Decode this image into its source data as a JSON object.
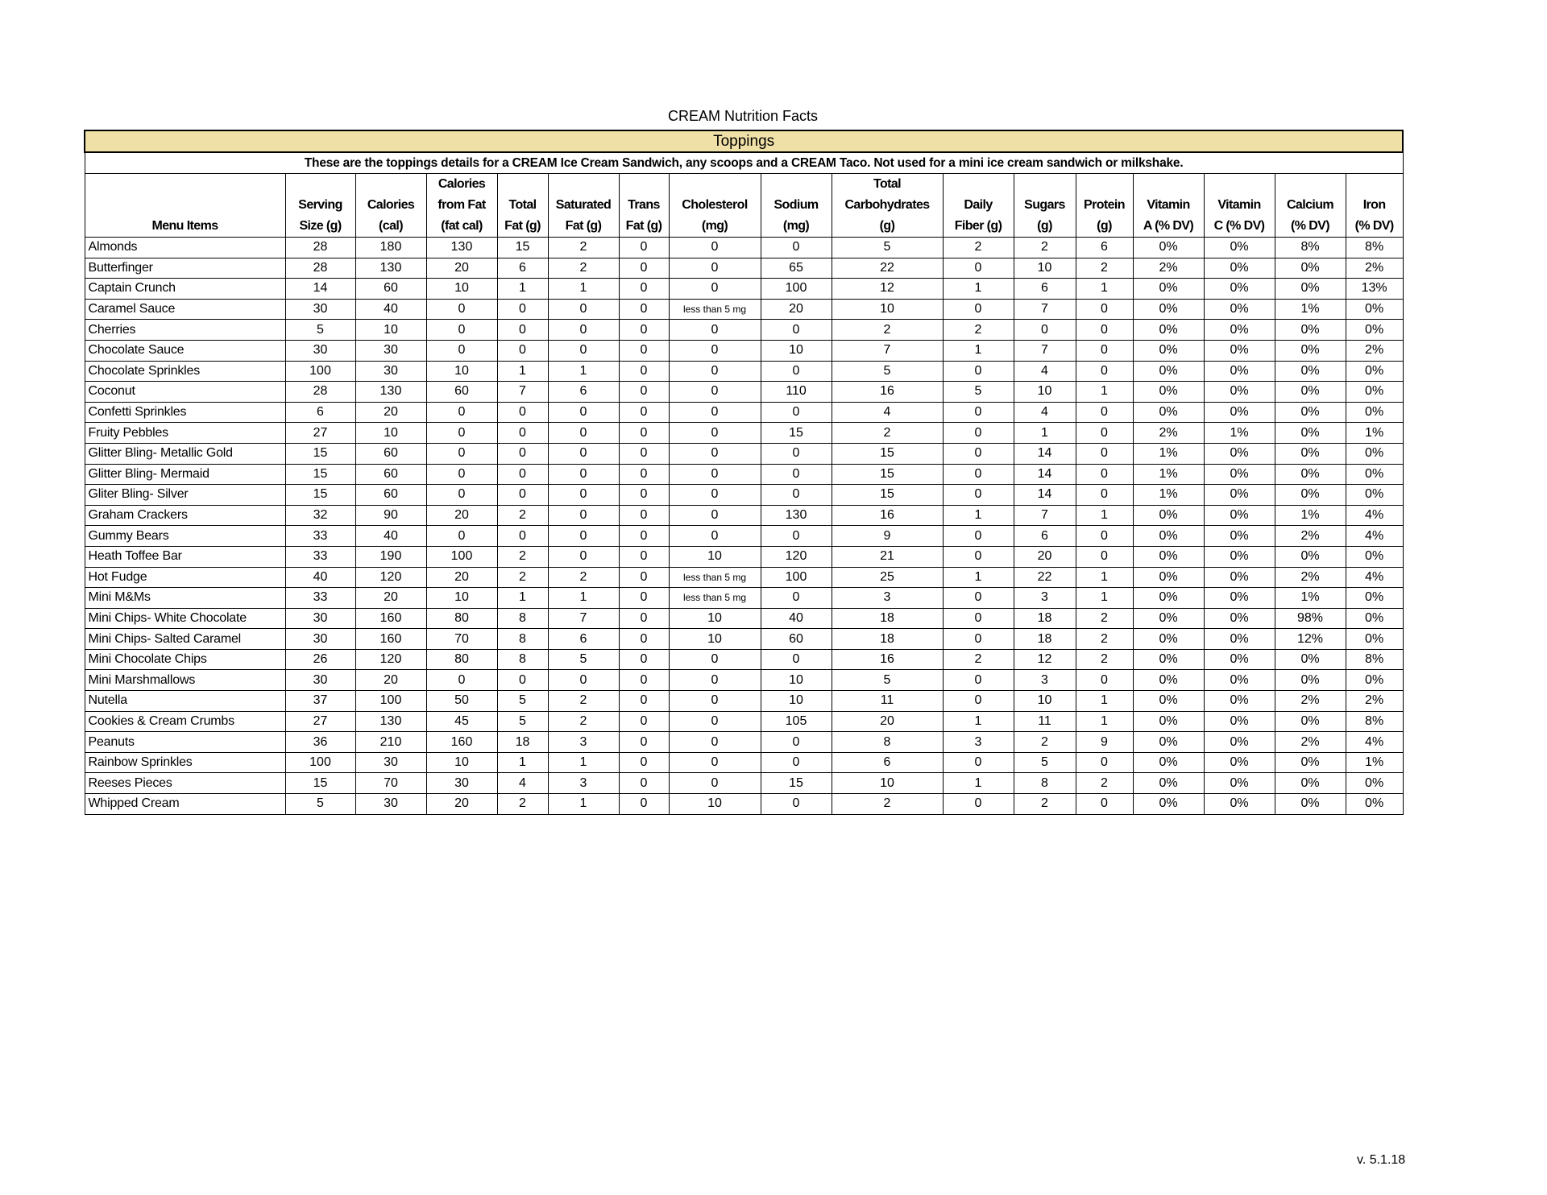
{
  "title": "CREAM Nutrition Facts",
  "section": "Toppings",
  "description": "These are the toppings details for a CREAM Ice Cream Sandwich, any scoops and a CREAM Taco. Not used for a mini ice cream sandwich or milkshake.",
  "accent_color": "#efe0a8",
  "columns": [
    [
      "Menu Items"
    ],
    [
      "Serving",
      "Size (g)"
    ],
    [
      "Calories",
      "(cal)"
    ],
    [
      "Calories",
      "from Fat",
      "(fat cal)"
    ],
    [
      "Total",
      "Fat (g)"
    ],
    [
      "Saturated",
      "Fat (g)"
    ],
    [
      "Trans",
      "Fat (g)"
    ],
    [
      "Cholesterol",
      "(mg)"
    ],
    [
      "Sodium",
      "(mg)"
    ],
    [
      "Total",
      "Carbohydrates",
      "(g)"
    ],
    [
      "Daily",
      "Fiber (g)"
    ],
    [
      "Sugars",
      "(g)"
    ],
    [
      "Protein",
      "(g)"
    ],
    [
      "Vitamin",
      "A (% DV)"
    ],
    [
      "Vitamin",
      "C (% DV)"
    ],
    [
      "Calcium",
      "(% DV)"
    ],
    [
      "Iron",
      "(% DV)"
    ]
  ],
  "rows": [
    [
      "Almonds",
      "28",
      "180",
      "130",
      "15",
      "2",
      "0",
      "0",
      "0",
      "5",
      "2",
      "2",
      "6",
      "0%",
      "0%",
      "8%",
      "8%"
    ],
    [
      "Butterfinger",
      "28",
      "130",
      "20",
      "6",
      "2",
      "0",
      "0",
      "65",
      "22",
      "0",
      "10",
      "2",
      "2%",
      "0%",
      "0%",
      "2%"
    ],
    [
      "Captain Crunch",
      "14",
      "60",
      "10",
      "1",
      "1",
      "0",
      "0",
      "100",
      "12",
      "1",
      "6",
      "1",
      "0%",
      "0%",
      "0%",
      "13%"
    ],
    [
      "Caramel Sauce",
      "30",
      "40",
      "0",
      "0",
      "0",
      "0",
      "less than 5 mg",
      "20",
      "10",
      "0",
      "7",
      "0",
      "0%",
      "0%",
      "1%",
      "0%"
    ],
    [
      "Cherries",
      "5",
      "10",
      "0",
      "0",
      "0",
      "0",
      "0",
      "0",
      "2",
      "2",
      "0",
      "0",
      "0%",
      "0%",
      "0%",
      "0%"
    ],
    [
      "Chocolate Sauce",
      "30",
      "30",
      "0",
      "0",
      "0",
      "0",
      "0",
      "10",
      "7",
      "1",
      "7",
      "0",
      "0%",
      "0%",
      "0%",
      "2%"
    ],
    [
      "Chocolate Sprinkles",
      "100",
      "30",
      "10",
      "1",
      "1",
      "0",
      "0",
      "0",
      "5",
      "0",
      "4",
      "0",
      "0%",
      "0%",
      "0%",
      "0%"
    ],
    [
      "Coconut",
      "28",
      "130",
      "60",
      "7",
      "6",
      "0",
      "0",
      "110",
      "16",
      "5",
      "10",
      "1",
      "0%",
      "0%",
      "0%",
      "0%"
    ],
    [
      "Confetti Sprinkles",
      "6",
      "20",
      "0",
      "0",
      "0",
      "0",
      "0",
      "0",
      "4",
      "0",
      "4",
      "0",
      "0%",
      "0%",
      "0%",
      "0%"
    ],
    [
      "Fruity Pebbles",
      "27",
      "10",
      "0",
      "0",
      "0",
      "0",
      "0",
      "15",
      "2",
      "0",
      "1",
      "0",
      "2%",
      "1%",
      "0%",
      "1%"
    ],
    [
      "Glitter Bling- Metallic Gold",
      "15",
      "60",
      "0",
      "0",
      "0",
      "0",
      "0",
      "0",
      "15",
      "0",
      "14",
      "0",
      "1%",
      "0%",
      "0%",
      "0%"
    ],
    [
      "Glitter Bling- Mermaid",
      "15",
      "60",
      "0",
      "0",
      "0",
      "0",
      "0",
      "0",
      "15",
      "0",
      "14",
      "0",
      "1%",
      "0%",
      "0%",
      "0%"
    ],
    [
      "Gliter Bling- Silver",
      "15",
      "60",
      "0",
      "0",
      "0",
      "0",
      "0",
      "0",
      "15",
      "0",
      "14",
      "0",
      "1%",
      "0%",
      "0%",
      "0%"
    ],
    [
      "Graham Crackers",
      "32",
      "90",
      "20",
      "2",
      "0",
      "0",
      "0",
      "130",
      "16",
      "1",
      "7",
      "1",
      "0%",
      "0%",
      "1%",
      "4%"
    ],
    [
      "Gummy Bears",
      "33",
      "40",
      "0",
      "0",
      "0",
      "0",
      "0",
      "0",
      "9",
      "0",
      "6",
      "0",
      "0%",
      "0%",
      "2%",
      "4%"
    ],
    [
      "Heath Toffee Bar",
      "33",
      "190",
      "100",
      "2",
      "0",
      "0",
      "10",
      "120",
      "21",
      "0",
      "20",
      "0",
      "0%",
      "0%",
      "0%",
      "0%"
    ],
    [
      "Hot Fudge",
      "40",
      "120",
      "20",
      "2",
      "2",
      "0",
      "less than 5 mg",
      "100",
      "25",
      "1",
      "22",
      "1",
      "0%",
      "0%",
      "2%",
      "4%"
    ],
    [
      "Mini M&Ms",
      "33",
      "20",
      "10",
      "1",
      "1",
      "0",
      "less than 5 mg",
      "0",
      "3",
      "0",
      "3",
      "1",
      "0%",
      "0%",
      "1%",
      "0%"
    ],
    [
      "Mini Chips- White Chocolate",
      "30",
      "160",
      "80",
      "8",
      "7",
      "0",
      "10",
      "40",
      "18",
      "0",
      "18",
      "2",
      "0%",
      "0%",
      "98%",
      "0%"
    ],
    [
      "Mini Chips- Salted Caramel",
      "30",
      "160",
      "70",
      "8",
      "6",
      "0",
      "10",
      "60",
      "18",
      "0",
      "18",
      "2",
      "0%",
      "0%",
      "12%",
      "0%"
    ],
    [
      "Mini Chocolate Chips",
      "26",
      "120",
      "80",
      "8",
      "5",
      "0",
      "0",
      "0",
      "16",
      "2",
      "12",
      "2",
      "0%",
      "0%",
      "0%",
      "8%"
    ],
    [
      "Mini Marshmallows",
      "30",
      "20",
      "0",
      "0",
      "0",
      "0",
      "0",
      "10",
      "5",
      "0",
      "3",
      "0",
      "0%",
      "0%",
      "0%",
      "0%"
    ],
    [
      "Nutella",
      "37",
      "100",
      "50",
      "5",
      "2",
      "0",
      "0",
      "10",
      "11",
      "0",
      "10",
      "1",
      "0%",
      "0%",
      "2%",
      "2%"
    ],
    [
      "Cookies & Cream Crumbs",
      "27",
      "130",
      "45",
      "5",
      "2",
      "0",
      "0",
      "105",
      "20",
      "1",
      "11",
      "1",
      "0%",
      "0%",
      "0%",
      "8%"
    ],
    [
      "Peanuts",
      "36",
      "210",
      "160",
      "18",
      "3",
      "0",
      "0",
      "0",
      "8",
      "3",
      "2",
      "9",
      "0%",
      "0%",
      "2%",
      "4%"
    ],
    [
      "Rainbow Sprinkles",
      "100",
      "30",
      "10",
      "1",
      "1",
      "0",
      "0",
      "0",
      "6",
      "0",
      "5",
      "0",
      "0%",
      "0%",
      "0%",
      "1%"
    ],
    [
      "Reeses Pieces",
      "15",
      "70",
      "30",
      "4",
      "3",
      "0",
      "0",
      "15",
      "10",
      "1",
      "8",
      "2",
      "0%",
      "0%",
      "0%",
      "0%"
    ],
    [
      "Whipped Cream",
      "5",
      "30",
      "20",
      "2",
      "1",
      "0",
      "10",
      "0",
      "2",
      "0",
      "2",
      "0",
      "0%",
      "0%",
      "0%",
      "0%"
    ]
  ],
  "version": "v. 5.1.18"
}
